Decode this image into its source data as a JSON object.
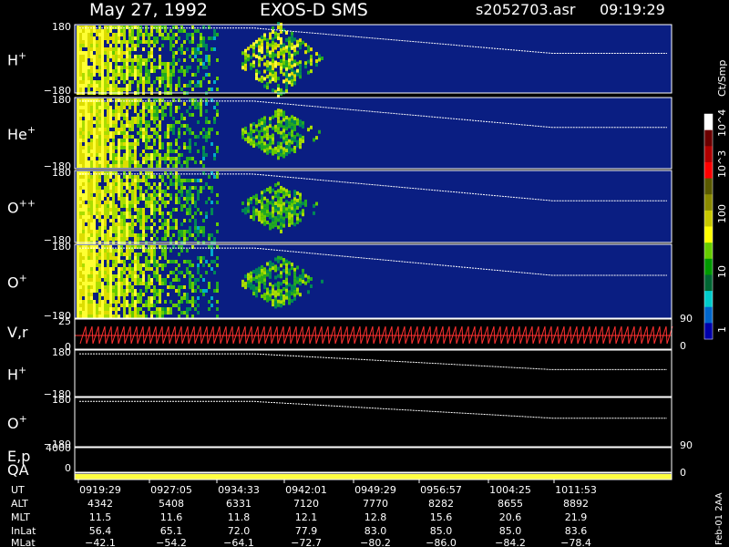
{
  "header": {
    "date": "May 27, 1992",
    "instrument": "EXOS-D SMS",
    "file": "s2052703.asr",
    "time": "09:19:29"
  },
  "side_note": "Feb-01 2AA",
  "chart_data": {
    "type": "heatmap",
    "title": "May 27, 1992   EXOS-D SMS",
    "panels": [
      {
        "species_base": "H",
        "species_sup": "+",
        "ylim": [
          -180,
          180
        ],
        "yticks": [
          "180",
          "−180"
        ],
        "kind": "spectrogram"
      },
      {
        "species_base": "He",
        "species_sup": "+",
        "ylim": [
          -180,
          180
        ],
        "yticks": [
          "180",
          "−180"
        ],
        "kind": "spectrogram"
      },
      {
        "species_base": "O",
        "species_sup": "++",
        "ylim": [
          -180,
          180
        ],
        "yticks": [
          "180",
          "−180"
        ],
        "kind": "spectrogram"
      },
      {
        "species_base": "O",
        "species_sup": "+",
        "ylim": [
          -180,
          180
        ],
        "yticks": [
          "180",
          "−180"
        ],
        "kind": "spectrogram"
      },
      {
        "species_base": "V,r",
        "species_sup": "",
        "ylim": [
          0,
          25
        ],
        "yticks": [
          "25",
          "0"
        ],
        "right_ticks": [
          "90",
          "0"
        ],
        "kind": "line"
      },
      {
        "species_base": "H",
        "species_sup": "+",
        "ylim": [
          -180,
          180
        ],
        "yticks": [
          "180",
          "−180"
        ],
        "kind": "black"
      },
      {
        "species_base": "O",
        "species_sup": "+",
        "ylim": [
          -180,
          180
        ],
        "yticks": [
          "180",
          "−180"
        ],
        "kind": "black"
      },
      {
        "species_base": "E,p",
        "species_sup": "",
        "yticks": [
          "4000"
        ],
        "right_ticks": [
          "90"
        ],
        "kind": "black"
      },
      {
        "species_base": "QA",
        "species_sup": "",
        "yticks": [
          "0"
        ],
        "right_ticks": [
          "0"
        ],
        "kind": "qa"
      }
    ],
    "colorbar": {
      "label": "Ct/Smp",
      "ticks": [
        "10^4",
        "10^3",
        "100",
        "10",
        "1"
      ],
      "colors": [
        "#ffffff",
        "#6b0000",
        "#b00000",
        "#ff0000",
        "#5a5a00",
        "#8a8a00",
        "#c8c800",
        "#ffff00",
        "#66cc00",
        "#009900",
        "#006633",
        "#00cccc",
        "#0066cc",
        "#0000aa"
      ]
    },
    "time_axis": {
      "labels": [
        "UT",
        "ALT",
        "MLT",
        "InLat",
        "MLat"
      ],
      "rows": [
        [
          "0919:29",
          "0927:05",
          "0934:33",
          "0942:01",
          "0949:29",
          "0956:57",
          "1004:25",
          "1011:53"
        ],
        [
          "4342",
          "5408",
          "6331",
          "7120",
          "7770",
          "8282",
          "8655",
          "8892"
        ],
        [
          "11.5",
          "11.6",
          "11.8",
          "12.1",
          "12.8",
          "15.6",
          "20.6",
          "21.9"
        ],
        [
          "56.4",
          "65.1",
          "72.0",
          "77.9",
          "83.0",
          "85.0",
          "85.0",
          "83.6"
        ],
        [
          "−42.1",
          "−54.2",
          "−64.1",
          "−72.7",
          "−80.2",
          "−86.0",
          "−84.2",
          "−78.4"
        ]
      ]
    }
  }
}
